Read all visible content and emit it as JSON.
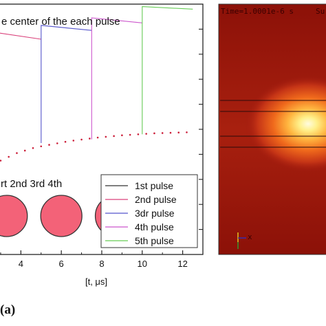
{
  "chart_data": {
    "type": "line",
    "annotation": "e center of the each pulse",
    "xlabel": "[t, μs]",
    "x_ticks": [
      4,
      6,
      8,
      10,
      12
    ],
    "xlim": [
      2.9,
      13.0
    ],
    "ylim": [
      0,
      1
    ],
    "series": [
      {
        "name": "1st pulse",
        "color": "#333333",
        "points": []
      },
      {
        "name": "2nd pulse",
        "color": "#d9407a",
        "points": [
          [
            2.9,
            0.885
          ],
          [
            5.0,
            0.86
          ]
        ]
      },
      {
        "name": "3dr pulse",
        "color": "#5555cc",
        "points": [
          [
            5.0,
            0.445
          ],
          [
            5.0,
            0.86
          ],
          [
            5.0,
            0.915
          ],
          [
            7.5,
            0.895
          ]
        ]
      },
      {
        "name": "4th pulse",
        "color": "#cc55cc",
        "points": [
          [
            7.5,
            0.46
          ],
          [
            7.5,
            0.895
          ],
          [
            7.5,
            0.945
          ],
          [
            10.0,
            0.925
          ]
        ]
      },
      {
        "name": "5th pulse",
        "color": "#66cc55",
        "points": [
          [
            10.0,
            0.48
          ],
          [
            10.0,
            0.925
          ],
          [
            10.0,
            0.99
          ],
          [
            12.5,
            0.98
          ]
        ]
      }
    ],
    "dotted_series": {
      "color": "#cc1f3a",
      "x": [
        3.0,
        3.4,
        3.8,
        4.2,
        4.6,
        5.0,
        5.4,
        5.8,
        6.2,
        6.6,
        7.0,
        7.4,
        7.8,
        8.2,
        8.6,
        9.0,
        9.4,
        9.8,
        10.2,
        10.6,
        11.0,
        11.4,
        11.8,
        12.2
      ],
      "y": [
        0.375,
        0.39,
        0.405,
        0.415,
        0.425,
        0.432,
        0.438,
        0.444,
        0.45,
        0.455,
        0.459,
        0.463,
        0.467,
        0.47,
        0.473,
        0.476,
        0.478,
        0.48,
        0.482,
        0.484,
        0.485,
        0.486,
        0.487,
        0.488
      ]
    },
    "circle_labels": "rt  2nd  3rd  4th",
    "circle_centers_x": [
      0.6,
      3.3,
      6.0,
      8.7
    ],
    "grid": false,
    "legend_position": "bottom-right"
  },
  "simulation": {
    "time_label": "Time=1.0001e-6 s",
    "title_fragment": "Su",
    "axis_label": "x"
  },
  "colors": {
    "sim_background": "#a01a10",
    "sim_hotspot": "#fff6a0",
    "circle_fill": "#f0405a"
  },
  "panel_label": "(a)"
}
